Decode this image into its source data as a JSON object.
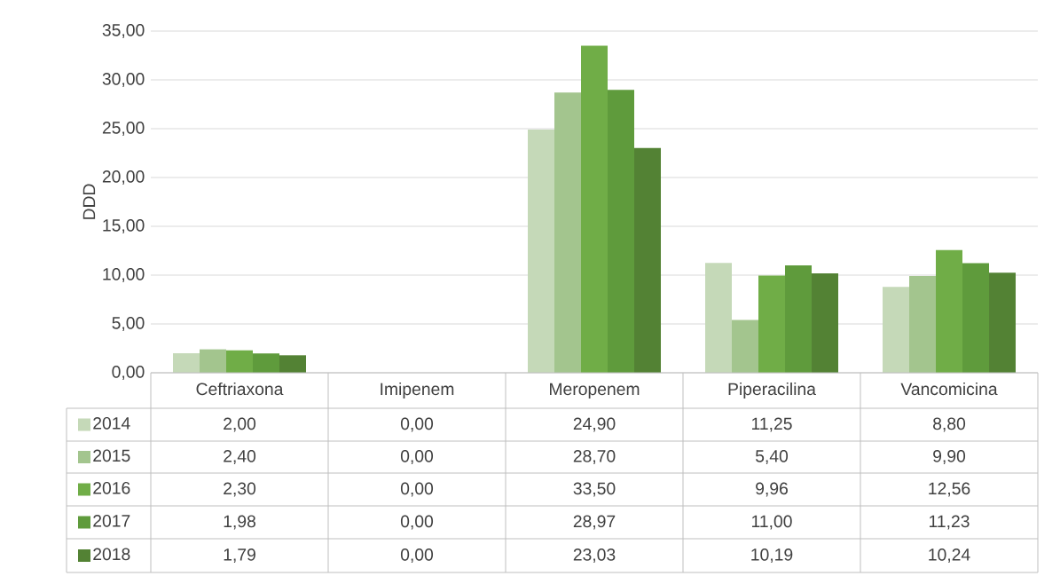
{
  "chart_data": {
    "type": "bar",
    "ylabel": "DDD",
    "categories": [
      "Ceftriaxona",
      "Imipenem",
      "Meropenem",
      "Piperacilina",
      "Vancomicina"
    ],
    "series": [
      {
        "name": "2014",
        "color": "#c5d9b8",
        "values": [
          2.0,
          0.0,
          24.9,
          11.25,
          8.8
        ],
        "value_labels": [
          "2,00",
          "0,00",
          "24,90",
          "11,25",
          "8,80"
        ]
      },
      {
        "name": "2015",
        "color": "#a3c58e",
        "values": [
          2.4,
          0.0,
          28.7,
          5.4,
          9.9
        ],
        "value_labels": [
          "2,40",
          "0,00",
          "28,70",
          "5,40",
          "9,90"
        ]
      },
      {
        "name": "2016",
        "color": "#70ad47",
        "values": [
          2.3,
          0.0,
          33.5,
          9.96,
          12.56
        ],
        "value_labels": [
          "2,30",
          "0,00",
          "33,50",
          "9,96",
          "12,56"
        ]
      },
      {
        "name": "2017",
        "color": "#5f9b3c",
        "values": [
          1.98,
          0.0,
          28.97,
          11.0,
          11.23
        ],
        "value_labels": [
          "1,98",
          "0,00",
          "28,97",
          "11,00",
          "11,23"
        ]
      },
      {
        "name": "2018",
        "color": "#538234",
        "values": [
          1.79,
          0.0,
          23.03,
          10.19,
          10.24
        ],
        "value_labels": [
          "1,79",
          "0,00",
          "23,03",
          "10,19",
          "10,24"
        ]
      }
    ],
    "ylim": [
      0,
      35
    ],
    "yticks": [
      {
        "value": 0,
        "label": "0,00"
      },
      {
        "value": 5,
        "label": "5,00"
      },
      {
        "value": 10,
        "label": "10,00"
      },
      {
        "value": 15,
        "label": "15,00"
      },
      {
        "value": 20,
        "label": "20,00"
      },
      {
        "value": 25,
        "label": "25,00"
      },
      {
        "value": 30,
        "label": "30,00"
      },
      {
        "value": 35,
        "label": "35,00"
      }
    ],
    "grid": "y",
    "legend": "bottom left"
  }
}
